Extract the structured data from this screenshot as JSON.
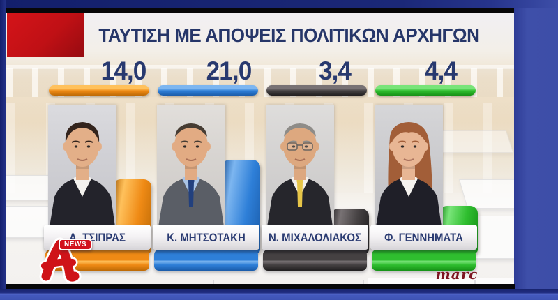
{
  "title": "ΤΑΥΤΙΣΗ ΜΕ ΑΠΟΨΕΙΣ ΠΟΛΙΤΙΚΩΝ ΑΡΧΗΓΩΝ",
  "branding": {
    "channel_badge": "NEWS",
    "channel_letter": "A",
    "pollster": "marc"
  },
  "frame_colors": {
    "outer_blue": "#3d4ea8",
    "dark_navy": "#18246e",
    "black_strip": "#070709",
    "red_block": "#c01015",
    "title_navy": "#263669"
  },
  "chart_data": {
    "type": "bar",
    "title": "ΤΑΥΤΙΣΗ ΜΕ ΑΠΟΨΕΙΣ ΠΟΛΙΤΙΚΩΝ ΑΡΧΗΓΩΝ",
    "categories": [
      "Α. ΤΣΙΠΡΑΣ",
      "Κ. ΜΗΤΣΟΤΑΚΗ",
      "Ν. ΜΙΧΑΛΟΛΙΑΚΟΣ",
      "Φ. ΓΕΝΝΗΜΑΤΑ"
    ],
    "values": [
      14.0,
      21.0,
      3.4,
      4.4
    ],
    "value_labels": [
      "14,0",
      "21,0",
      "3,4",
      "4,4"
    ],
    "colors": [
      "#ef8a15",
      "#2e7fd8",
      "#3f3c3c",
      "#2fbe2f"
    ],
    "orientation": "vertical",
    "unit": "percent",
    "legend_position": "none",
    "grid": false
  },
  "leaders": [
    {
      "name": "Α. ΤΣΙΠΡΑΣ",
      "value": 14.0,
      "value_label": "14,0",
      "color": {
        "main": "#ef8a15",
        "light": "#ffc15c",
        "dark": "#bd6a06"
      },
      "appearance": {
        "bg": "#cfcfd4",
        "skin": "#e3af88",
        "hair": "#33241d",
        "suit": "#23232b",
        "shirt": "#f4f2ef",
        "tie": null,
        "glasses": false,
        "long_hair": false,
        "bald": false
      }
    },
    {
      "name": "Κ. ΜΗΤΣΟΤΑΚΗ",
      "value": 21.0,
      "value_label": "21,0",
      "color": {
        "main": "#2e7fd8",
        "light": "#7db6f0",
        "dark": "#1a5caa"
      },
      "appearance": {
        "bg": "#d8d4cf",
        "skin": "#e2ab83",
        "hair": "#463c33",
        "suit": "#5a5e66",
        "shirt": "#a9c4e6",
        "tie": "#22407e",
        "glasses": false,
        "long_hair": false,
        "bald": true
      }
    },
    {
      "name": "Ν. ΜΙΧΑΛΟΛΙΑΚΟΣ",
      "value": 3.4,
      "value_label": "3,4",
      "color": {
        "main": "#454142",
        "light": "#787274",
        "dark": "#211f20"
      },
      "appearance": {
        "bg": "#d4d2d0",
        "skin": "#dda87f",
        "hair": "#8e8c88",
        "suit": "#26262c",
        "shirt": "#f2f0ec",
        "tie": "#e6c548",
        "glasses": true,
        "long_hair": false,
        "bald": true
      }
    },
    {
      "name": "Φ. ΓΕΝΝΗΜΑΤΑ",
      "value": 4.4,
      "value_label": "4,4",
      "color": {
        "main": "#2fbe2f",
        "light": "#79e479",
        "dark": "#169116"
      },
      "appearance": {
        "bg": "#c9c9cc",
        "skin": "#e8b694",
        "hair": "#a25e38",
        "suit": "#1f1f28",
        "shirt": "#f5f3f0",
        "tie": null,
        "glasses": false,
        "long_hair": true,
        "bald": false
      }
    }
  ]
}
